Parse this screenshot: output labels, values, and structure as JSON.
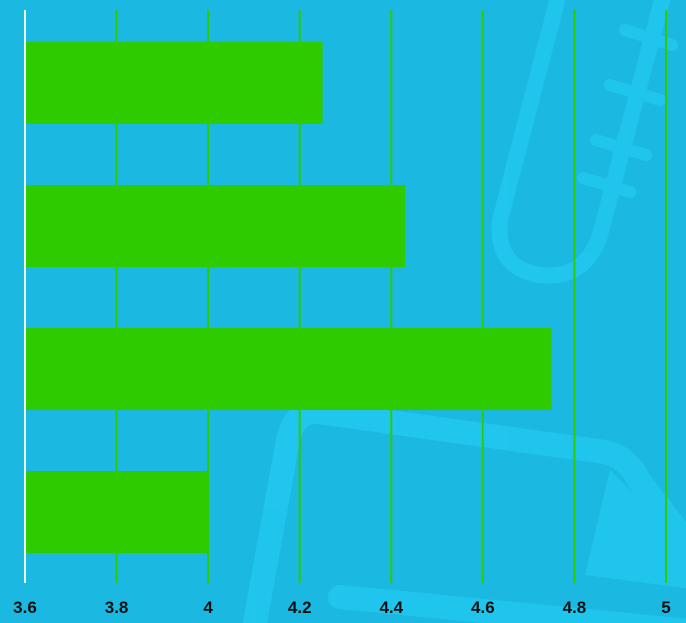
{
  "colors": {
    "background": "#1bb8e1",
    "bar": "#2ecb00",
    "gridline": "#2ecb00",
    "axis_line": "#e8f6fb",
    "tick_text": "#111111",
    "decoration": "#22c8f0"
  },
  "decoration_icons": [
    "test-tube-icon",
    "clipboard-icon"
  ],
  "chart_data": {
    "type": "bar",
    "orientation": "horizontal",
    "title": "",
    "xlabel": "",
    "ylabel": "",
    "xlim": [
      3.6,
      5.0
    ],
    "ticks": [
      3.6,
      3.8,
      4.0,
      4.2,
      4.4,
      4.6,
      4.8,
      5.0
    ],
    "tick_labels": [
      "3.6",
      "3.8",
      "4",
      "4.2",
      "4.4",
      "4.6",
      "4.8",
      "5"
    ],
    "grid": true,
    "legend": "none",
    "categories": [
      "",
      "",
      "",
      ""
    ],
    "values": [
      4.25,
      4.43,
      4.75,
      4.0
    ]
  }
}
